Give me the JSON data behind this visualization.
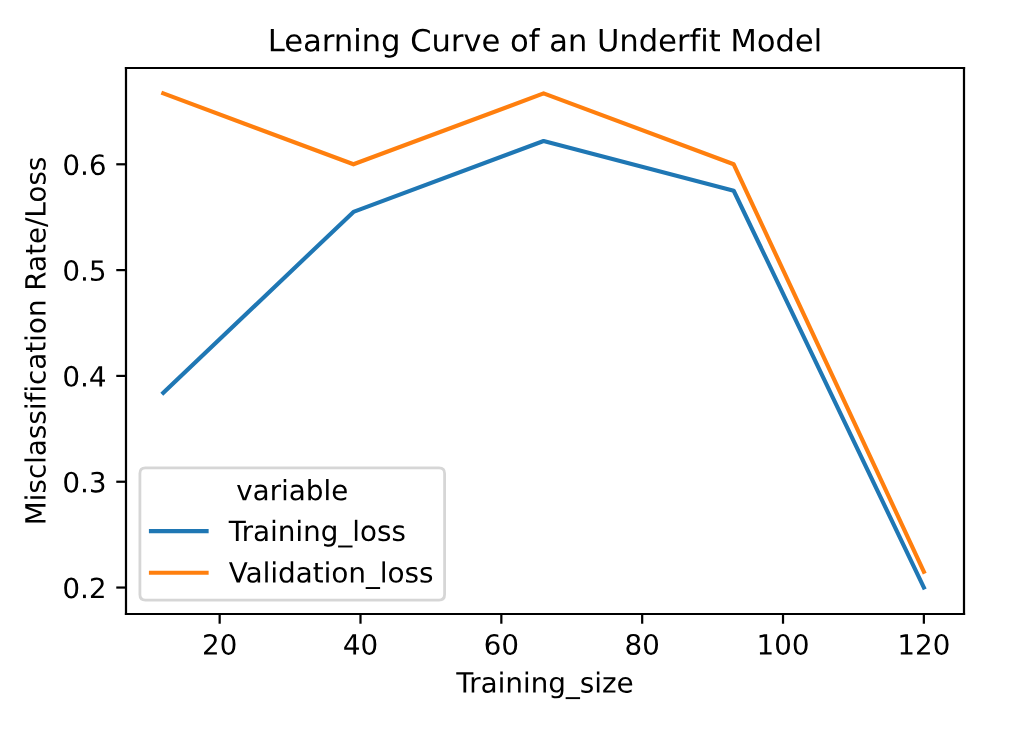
{
  "chart_data": {
    "type": "line",
    "title": "Learning Curve of an Underfit Model",
    "xlabel": "Training_size",
    "ylabel": "Misclassification Rate/Loss",
    "legend_title": "variable",
    "x": [
      12,
      39,
      66,
      93,
      120
    ],
    "series": [
      {
        "name": "Training_loss",
        "color": "#1f77b4",
        "values": [
          0.384,
          0.555,
          0.622,
          0.575,
          0.2
        ]
      },
      {
        "name": "Validation_loss",
        "color": "#ff7f0e",
        "values": [
          0.667,
          0.6,
          0.667,
          0.6,
          0.215
        ]
      }
    ],
    "xlim": [
      6.7,
      125.7
    ],
    "ylim": [
      0.175,
      0.691
    ],
    "xticks": [
      20,
      40,
      60,
      80,
      100,
      120
    ],
    "yticks": [
      0.2,
      0.3,
      0.4,
      0.5,
      0.6
    ],
    "legend": "bottom left",
    "grid": false,
    "marker": "none",
    "line_style": "solid"
  }
}
